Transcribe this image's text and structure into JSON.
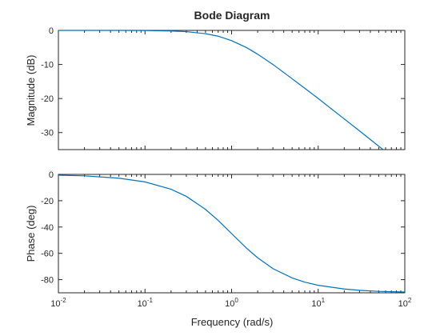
{
  "chart_data": {
    "type": "line",
    "title": "Bode Diagram",
    "xlabel": "Frequency (rad/s)",
    "x_scale": "log",
    "xlim": [
      0.01,
      100
    ],
    "x_ticks": [
      {
        "base": "10",
        "exp": "-2"
      },
      {
        "base": "10",
        "exp": "-1"
      },
      {
        "base": "10",
        "exp": "0"
      },
      {
        "base": "10",
        "exp": "1"
      },
      {
        "base": "10",
        "exp": "2"
      }
    ],
    "line_color": "#0072BD",
    "panels": [
      {
        "ylabel": "Magnitude (dB)",
        "ylim": [
          -35,
          0
        ],
        "yticks": [
          0,
          -10,
          -20,
          -30
        ],
        "ytick_labels": [
          "0",
          "-10",
          "-20",
          "-30"
        ],
        "series": [
          {
            "x": [
              0.01,
              0.02,
              0.05,
              0.1,
              0.2,
              0.3,
              0.5,
              0.7,
              1,
              1.5,
              2,
              3,
              5,
              7,
              10,
              20,
              30,
              56
            ],
            "y": [
              0,
              0,
              -0.01,
              -0.04,
              -0.17,
              -0.37,
              -0.97,
              -1.7,
              -3.0,
              -5.1,
              -7.0,
              -10.0,
              -14.2,
              -17.0,
              -20.0,
              -26.0,
              -29.5,
              -35.0
            ]
          }
        ]
      },
      {
        "ylabel": "Phase (deg)",
        "ylim": [
          -90,
          0
        ],
        "yticks": [
          0,
          -20,
          -40,
          -60,
          -80
        ],
        "ytick_labels": [
          "0",
          "-20",
          "-40",
          "-60",
          "-80"
        ],
        "series": [
          {
            "x": [
              0.01,
              0.02,
              0.05,
              0.1,
              0.2,
              0.3,
              0.5,
              0.7,
              1,
              1.5,
              2,
              3,
              5,
              7,
              10,
              20,
              30,
              50,
              100
            ],
            "y": [
              -0.6,
              -1.1,
              -2.9,
              -5.7,
              -11.3,
              -16.7,
              -26.6,
              -35.0,
              -45.0,
              -56.3,
              -63.4,
              -71.6,
              -78.7,
              -81.9,
              -84.3,
              -87.1,
              -88.1,
              -88.9,
              -89.4
            ]
          }
        ]
      }
    ]
  }
}
